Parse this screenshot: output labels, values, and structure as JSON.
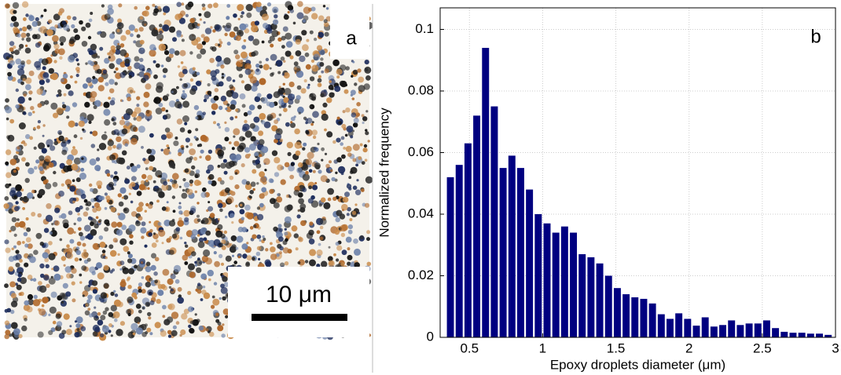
{
  "panel_a": {
    "label": "a",
    "scale_bar": "10 μm"
  },
  "chart_data": {
    "type": "histogram",
    "panel_label": "b",
    "xlabel": "Epoxy droplets diameter (μm)",
    "ylabel": "Normalized frequency",
    "bins": [
      0.34,
      0.4,
      0.46,
      0.52,
      0.58,
      0.64,
      0.7,
      0.76,
      0.82,
      0.88,
      0.94,
      1,
      1.06,
      1.12,
      1.18,
      1.24,
      1.3,
      1.36,
      1.42,
      1.48,
      1.54,
      1.6,
      1.66,
      1.72,
      1.78,
      1.84,
      1.9,
      1.96,
      2.02,
      2.08,
      2.14,
      2.2,
      2.26,
      2.32,
      2.38,
      2.44,
      2.5,
      2.56,
      2.62,
      2.68,
      2.74,
      2.8,
      2.86,
      2.92,
      2.98
    ],
    "values": [
      0.052,
      0.056,
      0.063,
      0.072,
      0.094,
      0.075,
      0.055,
      0.059,
      0.055,
      0.048,
      0.04,
      0.037,
      0.034,
      0.036,
      0.034,
      0.027,
      0.026,
      0.024,
      0.02,
      0.016,
      0.014,
      0.013,
      0.0125,
      0.011,
      0.0075,
      0.006,
      0.0078,
      0.006,
      0.0038,
      0.0065,
      0.0035,
      0.004,
      0.0055,
      0.004,
      0.0045,
      0.0045,
      0.0055,
      0.003,
      0.0018,
      0.0015,
      0.0015,
      0.0012,
      0.0012,
      0.0008
    ],
    "color": "#000080",
    "xlim": [
      0.3,
      3
    ],
    "xticks": [
      0.5,
      1,
      1.5,
      2,
      2.5,
      3
    ],
    "ylim": [
      0,
      0.107
    ],
    "yticks": [
      0,
      0.02,
      0.04,
      0.06,
      0.08,
      0.1
    ],
    "grid": true
  }
}
